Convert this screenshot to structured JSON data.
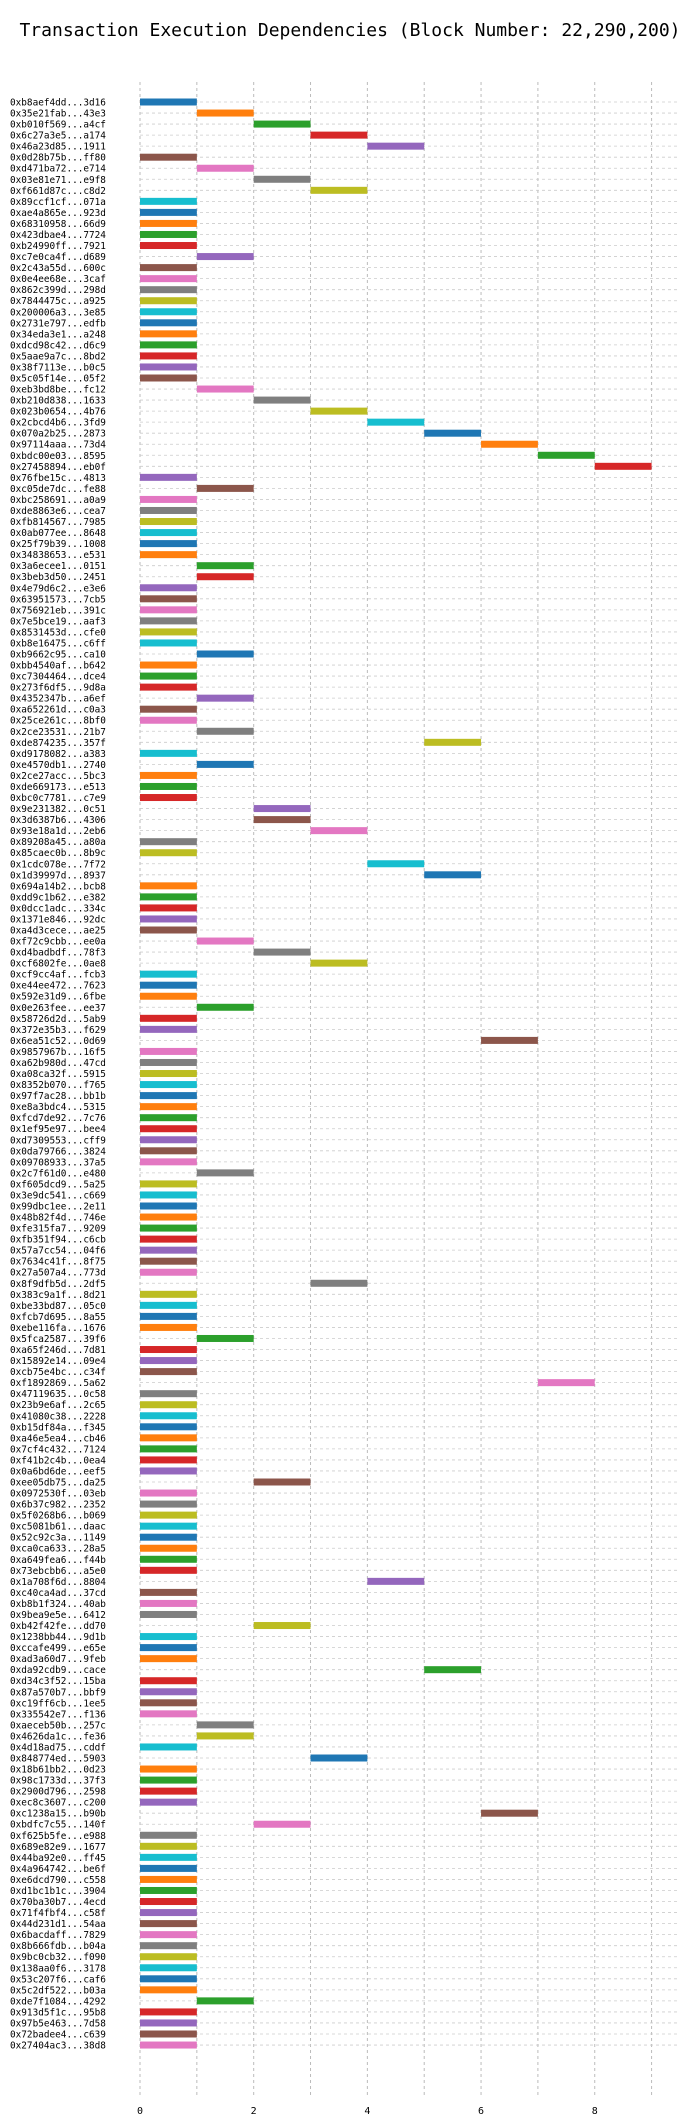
{
  "chart_data": {
    "type": "bar",
    "orientation": "horizontal-gantt",
    "title": "Transaction Execution Dependencies (Block Number: 22,290,200)",
    "xlabel": "",
    "ylabel": "",
    "xlim": [
      0,
      9.5
    ],
    "xticks": [
      0,
      2,
      4,
      6,
      8
    ],
    "grid": true,
    "palette": [
      "#1f77b4",
      "#ff7f0e",
      "#2ca02c",
      "#d62728",
      "#9467bd",
      "#8c564b",
      "#e377c2",
      "#7f7f7f",
      "#bcbd22",
      "#17becf"
    ],
    "transactions": [
      {
        "label": "0xb8aef4dd...3d16",
        "start": 0,
        "end": 1
      },
      {
        "label": "0x35e21fab...43e3",
        "start": 1,
        "end": 2
      },
      {
        "label": "0xb010f569...a4cf",
        "start": 2,
        "end": 3
      },
      {
        "label": "0x6c27a3e5...a174",
        "start": 3,
        "end": 4
      },
      {
        "label": "0x46a23d85...1911",
        "start": 4,
        "end": 5
      },
      {
        "label": "0x0d28b75b...ff80",
        "start": 0,
        "end": 1
      },
      {
        "label": "0xd471ba72...e714",
        "start": 1,
        "end": 2
      },
      {
        "label": "0x03e81e71...e9f8",
        "start": 2,
        "end": 3
      },
      {
        "label": "0xf661d87c...c8d2",
        "start": 3,
        "end": 4
      },
      {
        "label": "0x89ccf1cf...071a",
        "start": 0,
        "end": 1
      },
      {
        "label": "0xae4a865e...923d",
        "start": 0,
        "end": 1
      },
      {
        "label": "0x68310958...66d9",
        "start": 0,
        "end": 1
      },
      {
        "label": "0x423dbae4...7724",
        "start": 0,
        "end": 1
      },
      {
        "label": "0xb24990ff...7921",
        "start": 0,
        "end": 1
      },
      {
        "label": "0xc7e0ca4f...d689",
        "start": 1,
        "end": 2
      },
      {
        "label": "0x2c43a55d...600c",
        "start": 0,
        "end": 1
      },
      {
        "label": "0x0e4ee68e...3caf",
        "start": 0,
        "end": 1
      },
      {
        "label": "0x862c399d...298d",
        "start": 0,
        "end": 1
      },
      {
        "label": "0x7844475c...a925",
        "start": 0,
        "end": 1
      },
      {
        "label": "0x200006a3...3e85",
        "start": 0,
        "end": 1
      },
      {
        "label": "0x2731e797...edfb",
        "start": 0,
        "end": 1
      },
      {
        "label": "0x34eda3e1...a248",
        "start": 0,
        "end": 1
      },
      {
        "label": "0xdcd98c42...d6c9",
        "start": 0,
        "end": 1
      },
      {
        "label": "0x5aae9a7c...8bd2",
        "start": 0,
        "end": 1
      },
      {
        "label": "0x38f7113e...b0c5",
        "start": 0,
        "end": 1
      },
      {
        "label": "0x5c05f14e...05f2",
        "start": 0,
        "end": 1
      },
      {
        "label": "0xeb3bd8be...fc12",
        "start": 1,
        "end": 2
      },
      {
        "label": "0xb210d838...1633",
        "start": 2,
        "end": 3
      },
      {
        "label": "0x023b0654...4b76",
        "start": 3,
        "end": 4
      },
      {
        "label": "0x2cbcd4b6...3fd9",
        "start": 4,
        "end": 5
      },
      {
        "label": "0x070a2b25...2873",
        "start": 5,
        "end": 6
      },
      {
        "label": "0x97114aaa...73d4",
        "start": 6,
        "end": 7
      },
      {
        "label": "0xbdc00e03...8595",
        "start": 7,
        "end": 8
      },
      {
        "label": "0x27458894...eb0f",
        "start": 8,
        "end": 9
      },
      {
        "label": "0x76fbe15c...4813",
        "start": 0,
        "end": 1
      },
      {
        "label": "0xc05de7dc...fe88",
        "start": 1,
        "end": 2
      },
      {
        "label": "0xbc258691...a0a9",
        "start": 0,
        "end": 1
      },
      {
        "label": "0xde8863e6...cea7",
        "start": 0,
        "end": 1
      },
      {
        "label": "0xfb814567...7985",
        "start": 0,
        "end": 1
      },
      {
        "label": "0x0ab077ee...8648",
        "start": 0,
        "end": 1
      },
      {
        "label": "0x25f79b39...1008",
        "start": 0,
        "end": 1
      },
      {
        "label": "0x34838653...e531",
        "start": 0,
        "end": 1
      },
      {
        "label": "0x3a6ecee1...0151",
        "start": 1,
        "end": 2
      },
      {
        "label": "0x3beb3d50...2451",
        "start": 1,
        "end": 2
      },
      {
        "label": "0x4e79d6c2...e3e6",
        "start": 0,
        "end": 1
      },
      {
        "label": "0x63951573...7cb5",
        "start": 0,
        "end": 1
      },
      {
        "label": "0x756921eb...391c",
        "start": 0,
        "end": 1
      },
      {
        "label": "0x7e5bce19...aaf3",
        "start": 0,
        "end": 1
      },
      {
        "label": "0x8531453d...cfe0",
        "start": 0,
        "end": 1
      },
      {
        "label": "0xb8e16475...c6ff",
        "start": 0,
        "end": 1
      },
      {
        "label": "0xb9662c95...ca10",
        "start": 1,
        "end": 2
      },
      {
        "label": "0xbb4540af...b642",
        "start": 0,
        "end": 1
      },
      {
        "label": "0xc7304464...dce4",
        "start": 0,
        "end": 1
      },
      {
        "label": "0x273f6df5...9d8a",
        "start": 0,
        "end": 1
      },
      {
        "label": "0x4352347b...a6ef",
        "start": 1,
        "end": 2
      },
      {
        "label": "0xa652261d...c0a3",
        "start": 0,
        "end": 1
      },
      {
        "label": "0x25ce261c...8bf0",
        "start": 0,
        "end": 1
      },
      {
        "label": "0x2ce23531...21b7",
        "start": 1,
        "end": 2
      },
      {
        "label": "0xde874235...357f",
        "start": 5,
        "end": 6
      },
      {
        "label": "0xd9178082...a383",
        "start": 0,
        "end": 1
      },
      {
        "label": "0xe4570db1...2740",
        "start": 1,
        "end": 2
      },
      {
        "label": "0x2ce27acc...5bc3",
        "start": 0,
        "end": 1
      },
      {
        "label": "0xde669173...e513",
        "start": 0,
        "end": 1
      },
      {
        "label": "0xbc0c7781...c7e9",
        "start": 0,
        "end": 1
      },
      {
        "label": "0x9e231382...0c51",
        "start": 2,
        "end": 3
      },
      {
        "label": "0x3d6387b6...4306",
        "start": 2,
        "end": 3
      },
      {
        "label": "0x93e18a1d...2eb6",
        "start": 3,
        "end": 4
      },
      {
        "label": "0x89208a45...a80a",
        "start": 0,
        "end": 1
      },
      {
        "label": "0x85caec0b...8b9c",
        "start": 0,
        "end": 1
      },
      {
        "label": "0x1cdc078e...7f72",
        "start": 4,
        "end": 5
      },
      {
        "label": "0x1d39997d...8937",
        "start": 5,
        "end": 6
      },
      {
        "label": "0x694a14b2...bcb8",
        "start": 0,
        "end": 1
      },
      {
        "label": "0xdd9c1b62...e382",
        "start": 0,
        "end": 1
      },
      {
        "label": "0x0dcc1adc...334c",
        "start": 0,
        "end": 1
      },
      {
        "label": "0x1371e846...92dc",
        "start": 0,
        "end": 1
      },
      {
        "label": "0xa4d3cece...ae25",
        "start": 0,
        "end": 1
      },
      {
        "label": "0xf72c9cbb...ee0a",
        "start": 1,
        "end": 2
      },
      {
        "label": "0xd4badbdf...78f3",
        "start": 2,
        "end": 3
      },
      {
        "label": "0xcf6802fe...0ae8",
        "start": 3,
        "end": 4
      },
      {
        "label": "0xcf9cc4af...fcb3",
        "start": 0,
        "end": 1
      },
      {
        "label": "0xe44ee472...7623",
        "start": 0,
        "end": 1
      },
      {
        "label": "0x592e31d9...6fbe",
        "start": 0,
        "end": 1
      },
      {
        "label": "0x0e263fee...ee37",
        "start": 1,
        "end": 2
      },
      {
        "label": "0x58726d2d...5ab9",
        "start": 0,
        "end": 1
      },
      {
        "label": "0x372e35b3...f629",
        "start": 0,
        "end": 1
      },
      {
        "label": "0x6ea51c52...0d69",
        "start": 6,
        "end": 7
      },
      {
        "label": "0x9857967b...16f5",
        "start": 0,
        "end": 1
      },
      {
        "label": "0xa62b980d...47cd",
        "start": 0,
        "end": 1
      },
      {
        "label": "0xa08ca32f...5915",
        "start": 0,
        "end": 1
      },
      {
        "label": "0x8352b070...f765",
        "start": 0,
        "end": 1
      },
      {
        "label": "0x97f7ac28...bb1b",
        "start": 0,
        "end": 1
      },
      {
        "label": "0xe8a3bdc4...5315",
        "start": 0,
        "end": 1
      },
      {
        "label": "0xfcd7de92...7c76",
        "start": 0,
        "end": 1
      },
      {
        "label": "0x1ef95e97...bee4",
        "start": 0,
        "end": 1
      },
      {
        "label": "0xd7309553...cff9",
        "start": 0,
        "end": 1
      },
      {
        "label": "0x0da79766...3824",
        "start": 0,
        "end": 1
      },
      {
        "label": "0x09708933...37a5",
        "start": 0,
        "end": 1
      },
      {
        "label": "0x2c7f61d0...e480",
        "start": 1,
        "end": 2
      },
      {
        "label": "0xf605dcd9...5a25",
        "start": 0,
        "end": 1
      },
      {
        "label": "0x3e9dc541...c669",
        "start": 0,
        "end": 1
      },
      {
        "label": "0x99dbc1ee...2e11",
        "start": 0,
        "end": 1
      },
      {
        "label": "0x48b82f4d...746e",
        "start": 0,
        "end": 1
      },
      {
        "label": "0xfe315fa7...9209",
        "start": 0,
        "end": 1
      },
      {
        "label": "0xfb351f94...c6cb",
        "start": 0,
        "end": 1
      },
      {
        "label": "0x57a7cc54...04f6",
        "start": 0,
        "end": 1
      },
      {
        "label": "0x7634c41f...8f75",
        "start": 0,
        "end": 1
      },
      {
        "label": "0x27a507a4...773d",
        "start": 0,
        "end": 1
      },
      {
        "label": "0x8f9dfb5d...2df5",
        "start": 3,
        "end": 4
      },
      {
        "label": "0x383c9a1f...8d21",
        "start": 0,
        "end": 1
      },
      {
        "label": "0xbe33bd87...05c0",
        "start": 0,
        "end": 1
      },
      {
        "label": "0xfcb7d695...8a55",
        "start": 0,
        "end": 1
      },
      {
        "label": "0xebe116fa...1676",
        "start": 0,
        "end": 1
      },
      {
        "label": "0x5fca2587...39f6",
        "start": 1,
        "end": 2
      },
      {
        "label": "0xa65f246d...7d81",
        "start": 0,
        "end": 1
      },
      {
        "label": "0x15892e14...09e4",
        "start": 0,
        "end": 1
      },
      {
        "label": "0xcb75e4bc...c34f",
        "start": 0,
        "end": 1
      },
      {
        "label": "0xf1892869...5a62",
        "start": 7,
        "end": 8
      },
      {
        "label": "0x47119635...0c58",
        "start": 0,
        "end": 1
      },
      {
        "label": "0x23b9e6af...2c65",
        "start": 0,
        "end": 1
      },
      {
        "label": "0x41080c38...2228",
        "start": 0,
        "end": 1
      },
      {
        "label": "0xb15df84a...f345",
        "start": 0,
        "end": 1
      },
      {
        "label": "0xa46e5ea4...cb46",
        "start": 0,
        "end": 1
      },
      {
        "label": "0x7cf4c432...7124",
        "start": 0,
        "end": 1
      },
      {
        "label": "0xf41b2c4b...0ea4",
        "start": 0,
        "end": 1
      },
      {
        "label": "0x0a6bd6de...eef5",
        "start": 0,
        "end": 1
      },
      {
        "label": "0xee05db75...da25",
        "start": 2,
        "end": 3
      },
      {
        "label": "0x0972530f...03eb",
        "start": 0,
        "end": 1
      },
      {
        "label": "0x6b37c982...2352",
        "start": 0,
        "end": 1
      },
      {
        "label": "0x5f0268b6...b069",
        "start": 0,
        "end": 1
      },
      {
        "label": "0xc5081b61...daac",
        "start": 0,
        "end": 1
      },
      {
        "label": "0x52c92c3a...1149",
        "start": 0,
        "end": 1
      },
      {
        "label": "0xca0ca633...28a5",
        "start": 0,
        "end": 1
      },
      {
        "label": "0xa649fea6...f44b",
        "start": 0,
        "end": 1
      },
      {
        "label": "0x73ebcbb6...a5e0",
        "start": 0,
        "end": 1
      },
      {
        "label": "0x1a708f6d...8804",
        "start": 4,
        "end": 5
      },
      {
        "label": "0xc40ca4ad...37cd",
        "start": 0,
        "end": 1
      },
      {
        "label": "0xb8b1f324...40ab",
        "start": 0,
        "end": 1
      },
      {
        "label": "0x9bea9e5e...6412",
        "start": 0,
        "end": 1
      },
      {
        "label": "0xb42f42fe...dd70",
        "start": 2,
        "end": 3
      },
      {
        "label": "0x1238bb44...9d1b",
        "start": 0,
        "end": 1
      },
      {
        "label": "0xccafe499...e65e",
        "start": 0,
        "end": 1
      },
      {
        "label": "0xad3a60d7...9feb",
        "start": 0,
        "end": 1
      },
      {
        "label": "0xda92cdb9...cace",
        "start": 5,
        "end": 6
      },
      {
        "label": "0xd34c3f52...15ba",
        "start": 0,
        "end": 1
      },
      {
        "label": "0x87a570b7...bbf9",
        "start": 0,
        "end": 1
      },
      {
        "label": "0xc19ff6cb...1ee5",
        "start": 0,
        "end": 1
      },
      {
        "label": "0x335542e7...f136",
        "start": 0,
        "end": 1
      },
      {
        "label": "0xaeceb50b...257c",
        "start": 1,
        "end": 2
      },
      {
        "label": "0x4626da1c...fe36",
        "start": 1,
        "end": 2
      },
      {
        "label": "0x4d18ad75...cddf",
        "start": 0,
        "end": 1
      },
      {
        "label": "0x848774ed...5903",
        "start": 3,
        "end": 4
      },
      {
        "label": "0x18b61bb2...0d23",
        "start": 0,
        "end": 1
      },
      {
        "label": "0x98c1733d...37f3",
        "start": 0,
        "end": 1
      },
      {
        "label": "0x2900d796...2598",
        "start": 0,
        "end": 1
      },
      {
        "label": "0xec8c3607...c200",
        "start": 0,
        "end": 1
      },
      {
        "label": "0xc1238a15...b90b",
        "start": 6,
        "end": 7
      },
      {
        "label": "0xbdfc7c55...140f",
        "start": 2,
        "end": 3
      },
      {
        "label": "0xf625b5fe...e988",
        "start": 0,
        "end": 1
      },
      {
        "label": "0x689e82e9...1677",
        "start": 0,
        "end": 1
      },
      {
        "label": "0x44ba92e0...ff45",
        "start": 0,
        "end": 1
      },
      {
        "label": "0x4a964742...be6f",
        "start": 0,
        "end": 1
      },
      {
        "label": "0xe6dcd790...c558",
        "start": 0,
        "end": 1
      },
      {
        "label": "0xd1bc1b1c...3904",
        "start": 0,
        "end": 1
      },
      {
        "label": "0x70ba30b7...4ecd",
        "start": 0,
        "end": 1
      },
      {
        "label": "0x71f4fbf4...c58f",
        "start": 0,
        "end": 1
      },
      {
        "label": "0x44d231d1...54aa",
        "start": 0,
        "end": 1
      },
      {
        "label": "0x6bacdaff...7829",
        "start": 0,
        "end": 1
      },
      {
        "label": "0x8b666fdb...b04a",
        "start": 0,
        "end": 1
      },
      {
        "label": "0x9bc0cb32...f090",
        "start": 0,
        "end": 1
      },
      {
        "label": "0x138aa0f6...3178",
        "start": 0,
        "end": 1
      },
      {
        "label": "0x53c207f6...caf6",
        "start": 0,
        "end": 1
      },
      {
        "label": "0x5c2df522...b03a",
        "start": 0,
        "end": 1
      },
      {
        "label": "0xde7f1084...4292",
        "start": 1,
        "end": 2
      },
      {
        "label": "0x913d5f1c...95b8",
        "start": 0,
        "end": 1
      },
      {
        "label": "0x97b5e463...7d58",
        "start": 0,
        "end": 1
      },
      {
        "label": "0x72badee4...c639",
        "start": 0,
        "end": 1
      },
      {
        "label": "0x27404ac3...38d8",
        "start": 0,
        "end": 1
      }
    ]
  }
}
